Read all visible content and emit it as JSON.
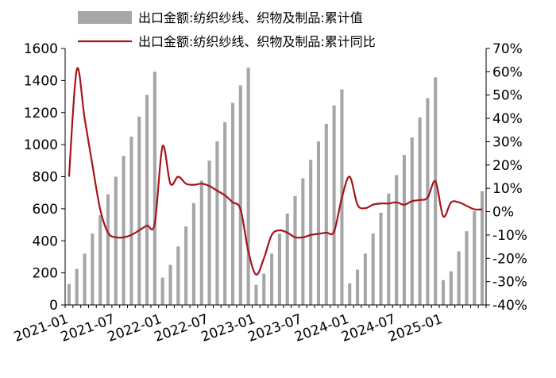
{
  "chart_data": {
    "type": "bar+line",
    "categories": [
      "2021-01",
      "2021-02",
      "2021-03",
      "2021-04",
      "2021-05",
      "2021-06",
      "2021-07",
      "2021-08",
      "2021-09",
      "2021-10",
      "2021-11",
      "2021-12",
      "2022-01",
      "2022-02",
      "2022-03",
      "2022-04",
      "2022-05",
      "2022-06",
      "2022-07",
      "2022-08",
      "2022-09",
      "2022-10",
      "2022-11",
      "2022-12",
      "2023-01",
      "2023-02",
      "2023-03",
      "2023-04",
      "2023-05",
      "2023-06",
      "2023-07",
      "2023-08",
      "2023-09",
      "2023-10",
      "2023-11",
      "2023-12",
      "2024-01",
      "2024-02",
      "2024-03",
      "2024-04",
      "2024-05",
      "2024-06",
      "2024-07",
      "2024-08",
      "2024-09",
      "2024-10",
      "2024-11",
      "2024-12",
      "2025-01",
      "2025-02",
      "2025-03",
      "2025-04",
      "2025-05",
      "2025-06"
    ],
    "x_tick_labels": [
      "2021-01",
      "2021-07",
      "2022-01",
      "2022-07",
      "2023-01",
      "2023-07",
      "2024-01",
      "2024-07",
      "2025-01"
    ],
    "series": [
      {
        "name": "出口金额:纺织纱线、织物及制品:累计值",
        "type": "bar",
        "axis": "left",
        "color": "#a6a6a6",
        "values": [
          130,
          225,
          320,
          445,
          560,
          690,
          800,
          930,
          1050,
          1175,
          1310,
          1455,
          170,
          250,
          365,
          490,
          635,
          775,
          900,
          1020,
          1140,
          1260,
          1370,
          1480,
          125,
          195,
          320,
          445,
          570,
          680,
          790,
          905,
          1020,
          1130,
          1245,
          1345,
          135,
          220,
          320,
          445,
          575,
          695,
          810,
          935,
          1045,
          1170,
          1290,
          1420,
          155,
          210,
          335,
          460,
          585,
          710
        ]
      },
      {
        "name": "出口金额:纺织纱线、织物及制品:累计同比",
        "type": "line",
        "axis": "right",
        "color": "#a31519",
        "values": [
          15,
          61,
          40,
          20,
          1,
          -9,
          -11,
          -11,
          -10,
          -8,
          -6,
          -5,
          28,
          12,
          15,
          12,
          11.5,
          12,
          11,
          9,
          7,
          4,
          1,
          -17,
          -27,
          -20,
          -10,
          -8,
          -9,
          -11,
          -11,
          -10,
          -9.5,
          -9,
          -8.5,
          6,
          15,
          3,
          1.5,
          3,
          3.5,
          3.5,
          4,
          3,
          4.5,
          5,
          6,
          13,
          -2,
          4,
          4,
          2.5,
          1,
          1
        ]
      }
    ],
    "y_left": {
      "min": 0,
      "max": 1600,
      "step": 200
    },
    "y_right": {
      "min": -40,
      "max": 70,
      "step": 10,
      "unit": "%"
    },
    "legend": {
      "position": "top-center"
    }
  }
}
